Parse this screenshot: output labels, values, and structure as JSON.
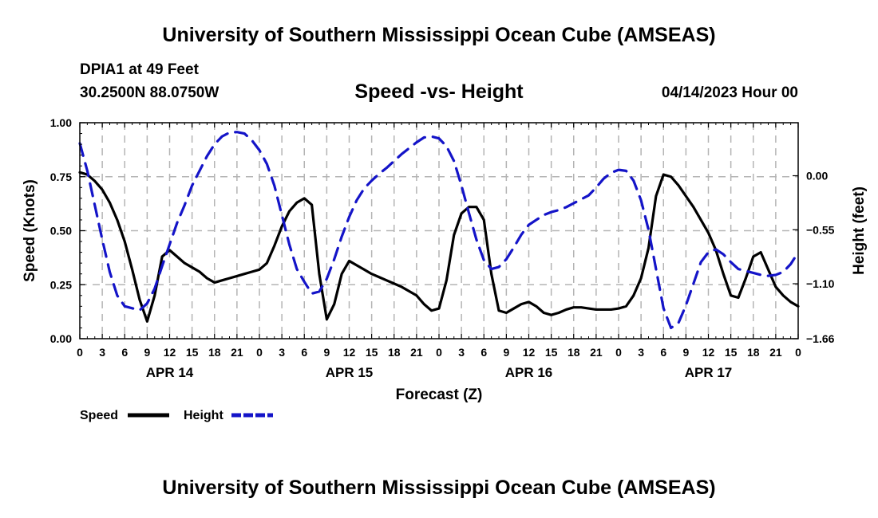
{
  "header": {
    "title": "University of Southern Mississippi Ocean Cube (AMSEAS)",
    "station": "DPIA1 at 49 Feet",
    "coordinates": "30.2500N  88.0750W",
    "subtitle": "Speed -vs- Height",
    "datetime": "04/14/2023 Hour 00"
  },
  "footer": {
    "title": "University of Southern Mississippi Ocean Cube (AMSEAS)"
  },
  "chart_data": {
    "type": "line",
    "title": "Speed -vs- Height",
    "xlabel": "Forecast (Z)",
    "ylabel": "Speed (Knots)",
    "y2label": "Height (feet)",
    "xlim": [
      0,
      96
    ],
    "ylim": [
      0,
      1
    ],
    "y2lim": [
      -1.66,
      0.54
    ],
    "x_tick_labels": [
      "0",
      "3",
      "6",
      "9",
      "12",
      "15",
      "18",
      "21",
      "0",
      "3",
      "6",
      "9",
      "12",
      "15",
      "18",
      "21",
      "0",
      "3",
      "6",
      "9",
      "12",
      "15",
      "18",
      "21",
      "0",
      "3",
      "6",
      "9",
      "12",
      "15",
      "18",
      "21",
      "0"
    ],
    "day_labels": [
      {
        "label": "APR 14",
        "x": 12
      },
      {
        "label": "APR 15",
        "x": 36
      },
      {
        "label": "APR 16",
        "x": 60
      },
      {
        "label": "APR 17",
        "x": 84
      }
    ],
    "y_ticks": [
      {
        "value": 0.0,
        "label": "0.00"
      },
      {
        "value": 0.25,
        "label": "0.25"
      },
      {
        "value": 0.5,
        "label": "0.50"
      },
      {
        "value": 0.75,
        "label": "0.75"
      },
      {
        "value": 1.0,
        "label": "1.00"
      }
    ],
    "y2_ticks": [
      {
        "value": 0.0,
        "label": "0.00"
      },
      {
        "value": -0.55,
        "label": "−0.55"
      },
      {
        "value": -1.1,
        "label": "−1.10"
      },
      {
        "value": -1.66,
        "label": "−1.66"
      }
    ],
    "grid": true,
    "legend": [
      {
        "name": "Speed",
        "color": "#000000",
        "style": "solid"
      },
      {
        "name": "Height",
        "color": "#1414c8",
        "style": "dashed"
      }
    ],
    "series": [
      {
        "name": "Speed",
        "axis": "left",
        "color": "#000000",
        "points": [
          [
            0,
            0.77
          ],
          [
            1,
            0.76
          ],
          [
            2,
            0.73
          ],
          [
            3,
            0.69
          ],
          [
            4,
            0.63
          ],
          [
            5,
            0.55
          ],
          [
            6,
            0.45
          ],
          [
            7,
            0.32
          ],
          [
            8,
            0.18
          ],
          [
            9,
            0.08
          ],
          [
            10,
            0.2
          ],
          [
            11,
            0.38
          ],
          [
            12,
            0.41
          ],
          [
            13,
            0.38
          ],
          [
            14,
            0.35
          ],
          [
            15,
            0.33
          ],
          [
            16,
            0.31
          ],
          [
            17,
            0.28
          ],
          [
            18,
            0.26
          ],
          [
            19,
            0.27
          ],
          [
            20,
            0.28
          ],
          [
            21,
            0.29
          ],
          [
            22,
            0.3
          ],
          [
            23,
            0.31
          ],
          [
            24,
            0.32
          ],
          [
            25,
            0.35
          ],
          [
            26,
            0.43
          ],
          [
            27,
            0.52
          ],
          [
            28,
            0.59
          ],
          [
            29,
            0.63
          ],
          [
            30,
            0.65
          ],
          [
            31,
            0.62
          ],
          [
            32,
            0.3
          ],
          [
            33,
            0.09
          ],
          [
            34,
            0.16
          ],
          [
            35,
            0.3
          ],
          [
            36,
            0.36
          ],
          [
            37,
            0.34
          ],
          [
            38,
            0.32
          ],
          [
            39,
            0.3
          ],
          [
            40,
            0.285
          ],
          [
            41,
            0.27
          ],
          [
            42,
            0.255
          ],
          [
            43,
            0.24
          ],
          [
            44,
            0.22
          ],
          [
            45,
            0.2
          ],
          [
            46,
            0.16
          ],
          [
            47,
            0.13
          ],
          [
            48,
            0.14
          ],
          [
            49,
            0.27
          ],
          [
            50,
            0.48
          ],
          [
            51,
            0.58
          ],
          [
            52,
            0.61
          ],
          [
            53,
            0.61
          ],
          [
            54,
            0.55
          ],
          [
            55,
            0.3
          ],
          [
            56,
            0.13
          ],
          [
            57,
            0.12
          ],
          [
            58,
            0.14
          ],
          [
            59,
            0.16
          ],
          [
            60,
            0.17
          ],
          [
            61,
            0.15
          ],
          [
            62,
            0.12
          ],
          [
            63,
            0.11
          ],
          [
            64,
            0.12
          ],
          [
            65,
            0.135
          ],
          [
            66,
            0.145
          ],
          [
            67,
            0.145
          ],
          [
            68,
            0.14
          ],
          [
            69,
            0.135
          ],
          [
            70,
            0.135
          ],
          [
            71,
            0.135
          ],
          [
            72,
            0.14
          ],
          [
            73,
            0.15
          ],
          [
            74,
            0.2
          ],
          [
            75,
            0.28
          ],
          [
            76,
            0.42
          ],
          [
            77,
            0.66
          ],
          [
            78,
            0.76
          ],
          [
            79,
            0.75
          ],
          [
            80,
            0.71
          ],
          [
            81,
            0.66
          ],
          [
            82,
            0.61
          ],
          [
            83,
            0.55
          ],
          [
            84,
            0.49
          ],
          [
            85,
            0.41
          ],
          [
            86,
            0.3
          ],
          [
            87,
            0.2
          ],
          [
            88,
            0.19
          ],
          [
            89,
            0.28
          ],
          [
            90,
            0.38
          ],
          [
            91,
            0.4
          ],
          [
            92,
            0.32
          ],
          [
            93,
            0.24
          ],
          [
            94,
            0.2
          ],
          [
            95,
            0.17
          ],
          [
            96,
            0.15
          ]
        ]
      },
      {
        "name": "Height",
        "axis": "right",
        "color": "#1414c8",
        "points": [
          [
            0,
            0.33
          ],
          [
            1,
            0.05
          ],
          [
            2,
            -0.3
          ],
          [
            3,
            -0.65
          ],
          [
            4,
            -0.98
          ],
          [
            5,
            -1.22
          ],
          [
            6,
            -1.33
          ],
          [
            7,
            -1.35
          ],
          [
            8,
            -1.37
          ],
          [
            9,
            -1.3
          ],
          [
            10,
            -1.15
          ],
          [
            11,
            -0.92
          ],
          [
            12,
            -0.7
          ],
          [
            13,
            -0.48
          ],
          [
            14,
            -0.3
          ],
          [
            15,
            -0.1
          ],
          [
            16,
            0.05
          ],
          [
            17,
            0.2
          ],
          [
            18,
            0.32
          ],
          [
            19,
            0.4
          ],
          [
            20,
            0.44
          ],
          [
            21,
            0.445
          ],
          [
            22,
            0.43
          ],
          [
            23,
            0.36
          ],
          [
            24,
            0.26
          ],
          [
            25,
            0.12
          ],
          [
            26,
            -0.1
          ],
          [
            27,
            -0.4
          ],
          [
            28,
            -0.7
          ],
          [
            29,
            -0.95
          ],
          [
            30,
            -1.08
          ],
          [
            31,
            -1.2
          ],
          [
            32,
            -1.18
          ],
          [
            33,
            -1.05
          ],
          [
            34,
            -0.85
          ],
          [
            35,
            -0.62
          ],
          [
            36,
            -0.42
          ],
          [
            37,
            -0.25
          ],
          [
            38,
            -0.13
          ],
          [
            39,
            -0.05
          ],
          [
            40,
            0.02
          ],
          [
            41,
            0.08
          ],
          [
            42,
            0.15
          ],
          [
            43,
            0.22
          ],
          [
            44,
            0.28
          ],
          [
            45,
            0.34
          ],
          [
            46,
            0.39
          ],
          [
            47,
            0.4
          ],
          [
            48,
            0.38
          ],
          [
            49,
            0.3
          ],
          [
            50,
            0.15
          ],
          [
            51,
            -0.1
          ],
          [
            52,
            -0.38
          ],
          [
            53,
            -0.65
          ],
          [
            54,
            -0.86
          ],
          [
            55,
            -0.95
          ],
          [
            56,
            -0.93
          ],
          [
            57,
            -0.85
          ],
          [
            58,
            -0.73
          ],
          [
            59,
            -0.6
          ],
          [
            60,
            -0.5
          ],
          [
            61,
            -0.45
          ],
          [
            62,
            -0.4
          ],
          [
            63,
            -0.37
          ],
          [
            64,
            -0.35
          ],
          [
            65,
            -0.32
          ],
          [
            66,
            -0.28
          ],
          [
            67,
            -0.24
          ],
          [
            68,
            -0.2
          ],
          [
            69,
            -0.12
          ],
          [
            70,
            -0.03
          ],
          [
            71,
            0.03
          ],
          [
            72,
            0.06
          ],
          [
            73,
            0.05
          ],
          [
            74,
            -0.05
          ],
          [
            75,
            -0.25
          ],
          [
            76,
            -0.55
          ],
          [
            77,
            -0.95
          ],
          [
            78,
            -1.35
          ],
          [
            79,
            -1.55
          ],
          [
            80,
            -1.5
          ],
          [
            81,
            -1.32
          ],
          [
            82,
            -1.1
          ],
          [
            83,
            -0.88
          ],
          [
            84,
            -0.78
          ],
          [
            85,
            -0.75
          ],
          [
            86,
            -0.8
          ],
          [
            87,
            -0.88
          ],
          [
            88,
            -0.95
          ],
          [
            89,
            -0.97
          ],
          [
            90,
            -0.99
          ],
          [
            91,
            -1.01
          ],
          [
            92,
            -1.02
          ],
          [
            93,
            -1.01
          ],
          [
            94,
            -0.98
          ],
          [
            95,
            -0.9
          ],
          [
            96,
            -0.78
          ]
        ]
      }
    ]
  }
}
